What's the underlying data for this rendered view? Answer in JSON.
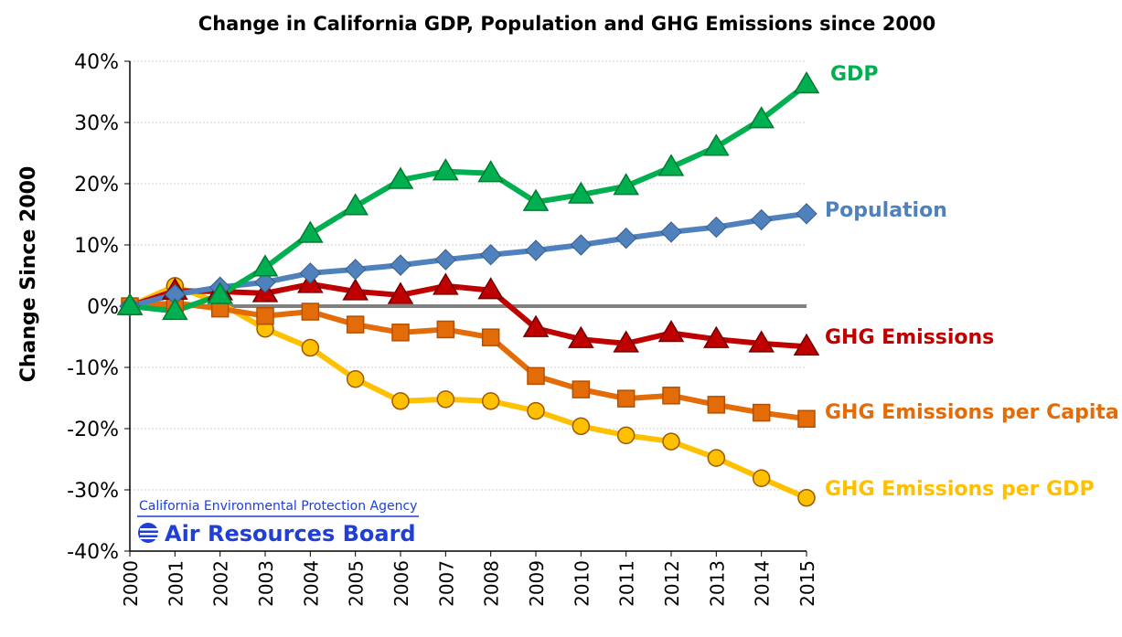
{
  "chart_data": {
    "type": "line",
    "title": "Change in California GDP, Population and GHG Emissions since 2000",
    "xlabel": "",
    "ylabel": "Change Since 2000",
    "ylim": [
      -40,
      40
    ],
    "yticks": [
      "-40%",
      "-30%",
      "-20%",
      "-10%",
      "0%",
      "10%",
      "20%",
      "30%",
      "40%"
    ],
    "grid": true,
    "legend": "inline labels at right end of each series",
    "x": [
      "2000",
      "2001",
      "2002",
      "2003",
      "2004",
      "2005",
      "2006",
      "2007",
      "2008",
      "2009",
      "2010",
      "2011",
      "2012",
      "2013",
      "2014",
      "2015"
    ],
    "series": [
      {
        "name": "GDP",
        "color": "#00b050",
        "label_color": "#00b050",
        "marker": "triangle",
        "values": [
          0,
          -0.8,
          1.8,
          6.3,
          11.8,
          16.3,
          20.6,
          22,
          21.7,
          17,
          18.2,
          19.6,
          22.7,
          26,
          30.5,
          36.2
        ]
      },
      {
        "name": "Population",
        "color": "#4f81bd",
        "label_color": "#4f81bd",
        "marker": "diamond",
        "values": [
          0,
          1.9,
          3.1,
          3.9,
          5.4,
          6,
          6.7,
          7.6,
          8.4,
          9.1,
          10,
          11.1,
          12.1,
          12.9,
          14.1,
          15.1
        ]
      },
      {
        "name": "GHG Emissions",
        "color": "#c00000",
        "label_color": "#c00000",
        "marker": "triangle",
        "values": [
          0,
          2.5,
          2.4,
          2.1,
          3.6,
          2.4,
          1.8,
          3.3,
          2.6,
          -3.6,
          -5.4,
          -6.1,
          -4.4,
          -5.4,
          -6.1,
          -6.6
        ]
      },
      {
        "name": "GHG Emissions per Capita",
        "color": "#e36c09",
        "label_color": "#e36c09",
        "marker": "square",
        "values": [
          0,
          0.5,
          -0.4,
          -1.6,
          -0.9,
          -3,
          -4.3,
          -3.8,
          -5.1,
          -11.4,
          -13.6,
          -15.1,
          -14.6,
          -16.1,
          -17.4,
          -18.4
        ]
      },
      {
        "name": "GHG Emissions per GDP",
        "color": "#ffc000",
        "label_color": "#ffc000",
        "marker": "circle",
        "values": [
          0,
          3.3,
          0.5,
          -3.7,
          -6.8,
          -11.9,
          -15.5,
          -15.2,
          -15.5,
          -17.1,
          -19.6,
          -21.1,
          -22.1,
          -24.8,
          -28.1,
          -31.3
        ]
      }
    ]
  },
  "logo": {
    "agency": "California Environmental Protection Agency",
    "board": "Air Resources Board"
  }
}
